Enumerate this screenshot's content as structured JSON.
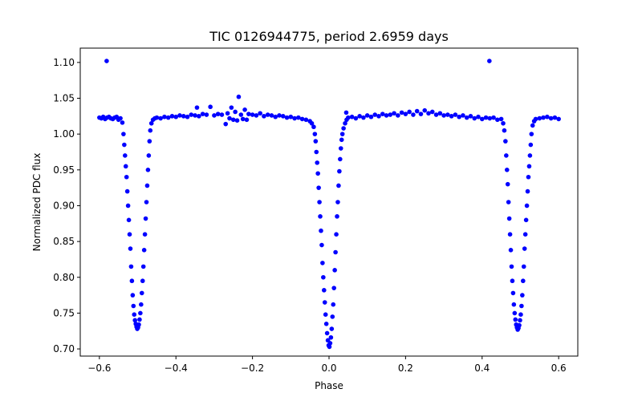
{
  "chart_data": {
    "type": "scatter",
    "title": "TIC 0126944775, period 2.6959 days",
    "xlabel": "Phase",
    "ylabel": "Normalized PDC flux",
    "xlim": [
      -0.65,
      0.65
    ],
    "ylim": [
      0.69,
      1.12
    ],
    "xticks": [
      -0.6,
      -0.4,
      -0.2,
      0.0,
      0.2,
      0.4,
      0.6
    ],
    "xtick_labels": [
      "−0.6",
      "−0.4",
      "−0.2",
      "0.0",
      "0.2",
      "0.4",
      "0.6"
    ],
    "yticks": [
      0.7,
      0.75,
      0.8,
      0.85,
      0.9,
      0.95,
      1.0,
      1.05,
      1.1
    ],
    "ytick_labels": [
      "0.70",
      "0.75",
      "0.80",
      "0.85",
      "0.90",
      "0.95",
      "1.00",
      "1.05",
      "1.10"
    ],
    "grid": false,
    "legend": "none",
    "marker_color": "#0000ff",
    "series": [
      {
        "points": [
          [
            -0.6,
            1.023
          ],
          [
            -0.595,
            1.022
          ],
          [
            -0.59,
            1.024
          ],
          [
            -0.585,
            1.021
          ],
          [
            -0.58,
            1.023
          ],
          [
            -0.575,
            1.024
          ],
          [
            -0.57,
            1.022
          ],
          [
            -0.565,
            1.021
          ],
          [
            -0.56,
            1.023
          ],
          [
            -0.555,
            1.024
          ],
          [
            -0.55,
            1.02
          ],
          [
            -0.545,
            1.022
          ],
          [
            -0.54,
            1.016
          ],
          [
            -0.537,
            1.0
          ],
          [
            -0.535,
            0.985
          ],
          [
            -0.533,
            0.97
          ],
          [
            -0.531,
            0.955
          ],
          [
            -0.529,
            0.94
          ],
          [
            -0.527,
            0.92
          ],
          [
            -0.525,
            0.9
          ],
          [
            -0.523,
            0.88
          ],
          [
            -0.521,
            0.86
          ],
          [
            -0.519,
            0.84
          ],
          [
            -0.517,
            0.815
          ],
          [
            -0.515,
            0.795
          ],
          [
            -0.513,
            0.775
          ],
          [
            -0.511,
            0.76
          ],
          [
            -0.509,
            0.748
          ],
          [
            -0.507,
            0.74
          ],
          [
            -0.505,
            0.735
          ],
          [
            -0.503,
            0.731
          ],
          [
            -0.501,
            0.728
          ],
          [
            -0.499,
            0.73
          ],
          [
            -0.497,
            0.734
          ],
          [
            -0.495,
            0.741
          ],
          [
            -0.493,
            0.75
          ],
          [
            -0.491,
            0.762
          ],
          [
            -0.489,
            0.778
          ],
          [
            -0.487,
            0.795
          ],
          [
            -0.485,
            0.815
          ],
          [
            -0.483,
            0.838
          ],
          [
            -0.481,
            0.86
          ],
          [
            -0.479,
            0.882
          ],
          [
            -0.477,
            0.905
          ],
          [
            -0.475,
            0.928
          ],
          [
            -0.473,
            0.95
          ],
          [
            -0.471,
            0.97
          ],
          [
            -0.469,
            0.99
          ],
          [
            -0.467,
            1.005
          ],
          [
            -0.464,
            1.015
          ],
          [
            -0.46,
            1.02
          ],
          [
            -0.455,
            1.022
          ],
          [
            -0.45,
            1.023
          ],
          [
            -0.44,
            1.022
          ],
          [
            -0.43,
            1.024
          ],
          [
            -0.42,
            1.023
          ],
          [
            -0.41,
            1.025
          ],
          [
            -0.4,
            1.024
          ],
          [
            -0.39,
            1.026
          ],
          [
            -0.38,
            1.025
          ],
          [
            -0.37,
            1.024
          ],
          [
            -0.36,
            1.027
          ],
          [
            -0.35,
            1.026
          ],
          [
            -0.345,
            1.037
          ],
          [
            -0.34,
            1.025
          ],
          [
            -0.33,
            1.028
          ],
          [
            -0.32,
            1.027
          ],
          [
            -0.31,
            1.038
          ],
          [
            -0.3,
            1.026
          ],
          [
            -0.29,
            1.028
          ],
          [
            -0.28,
            1.027
          ],
          [
            -0.27,
            1.014
          ],
          [
            -0.265,
            1.029
          ],
          [
            -0.26,
            1.022
          ],
          [
            -0.255,
            1.037
          ],
          [
            -0.25,
            1.02
          ],
          [
            -0.245,
            1.031
          ],
          [
            -0.24,
            1.019
          ],
          [
            -0.236,
            1.052
          ],
          [
            -0.23,
            1.027
          ],
          [
            -0.225,
            1.021
          ],
          [
            -0.22,
            1.034
          ],
          [
            -0.215,
            1.02
          ],
          [
            -0.21,
            1.028
          ],
          [
            -0.2,
            1.027
          ],
          [
            -0.19,
            1.026
          ],
          [
            -0.18,
            1.029
          ],
          [
            -0.17,
            1.025
          ],
          [
            -0.16,
            1.027
          ],
          [
            -0.15,
            1.026
          ],
          [
            -0.14,
            1.024
          ],
          [
            -0.13,
            1.026
          ],
          [
            -0.12,
            1.025
          ],
          [
            -0.11,
            1.023
          ],
          [
            -0.1,
            1.024
          ],
          [
            -0.09,
            1.022
          ],
          [
            -0.08,
            1.023
          ],
          [
            -0.07,
            1.021
          ],
          [
            -0.06,
            1.02
          ],
          [
            -0.05,
            1.018
          ],
          [
            -0.045,
            1.015
          ],
          [
            -0.04,
            1.01
          ],
          [
            -0.037,
            1.0
          ],
          [
            -0.035,
            0.99
          ],
          [
            -0.033,
            0.975
          ],
          [
            -0.031,
            0.96
          ],
          [
            -0.029,
            0.945
          ],
          [
            -0.027,
            0.925
          ],
          [
            -0.025,
            0.905
          ],
          [
            -0.023,
            0.885
          ],
          [
            -0.021,
            0.865
          ],
          [
            -0.019,
            0.845
          ],
          [
            -0.017,
            0.82
          ],
          [
            -0.015,
            0.8
          ],
          [
            -0.013,
            0.782
          ],
          [
            -0.011,
            0.765
          ],
          [
            -0.009,
            0.748
          ],
          [
            -0.007,
            0.735
          ],
          [
            -0.005,
            0.722
          ],
          [
            -0.003,
            0.712
          ],
          [
            -0.001,
            0.705
          ],
          [
            0.001,
            0.703
          ],
          [
            0.003,
            0.708
          ],
          [
            0.005,
            0.716
          ],
          [
            0.007,
            0.728
          ],
          [
            0.009,
            0.745
          ],
          [
            0.011,
            0.762
          ],
          [
            0.013,
            0.785
          ],
          [
            0.015,
            0.81
          ],
          [
            0.017,
            0.835
          ],
          [
            0.019,
            0.86
          ],
          [
            0.021,
            0.885
          ],
          [
            0.023,
            0.905
          ],
          [
            0.025,
            0.928
          ],
          [
            0.027,
            0.948
          ],
          [
            0.029,
            0.965
          ],
          [
            0.031,
            0.98
          ],
          [
            0.033,
            0.992
          ],
          [
            0.035,
            1.0
          ],
          [
            0.038,
            1.008
          ],
          [
            0.042,
            1.015
          ],
          [
            0.046,
            1.02
          ],
          [
            0.05,
            1.023
          ],
          [
            0.045,
            1.03
          ],
          [
            0.06,
            1.024
          ],
          [
            0.07,
            1.022
          ],
          [
            0.08,
            1.025
          ],
          [
            0.09,
            1.023
          ],
          [
            0.1,
            1.026
          ],
          [
            0.11,
            1.024
          ],
          [
            0.12,
            1.027
          ],
          [
            0.13,
            1.025
          ],
          [
            0.14,
            1.028
          ],
          [
            0.15,
            1.026
          ],
          [
            0.16,
            1.027
          ],
          [
            0.17,
            1.029
          ],
          [
            0.18,
            1.026
          ],
          [
            0.19,
            1.03
          ],
          [
            0.2,
            1.028
          ],
          [
            0.21,
            1.031
          ],
          [
            0.22,
            1.027
          ],
          [
            0.23,
            1.032
          ],
          [
            0.24,
            1.028
          ],
          [
            0.25,
            1.033
          ],
          [
            0.26,
            1.029
          ],
          [
            0.27,
            1.031
          ],
          [
            0.28,
            1.027
          ],
          [
            0.29,
            1.029
          ],
          [
            0.3,
            1.026
          ],
          [
            0.31,
            1.027
          ],
          [
            0.32,
            1.025
          ],
          [
            0.33,
            1.027
          ],
          [
            0.34,
            1.024
          ],
          [
            0.35,
            1.026
          ],
          [
            0.36,
            1.023
          ],
          [
            0.37,
            1.025
          ],
          [
            0.38,
            1.022
          ],
          [
            0.39,
            1.024
          ],
          [
            0.4,
            1.021
          ],
          [
            0.41,
            1.023
          ],
          [
            0.419,
            1.102
          ],
          [
            0.42,
            1.022
          ],
          [
            0.43,
            1.023
          ],
          [
            0.44,
            1.02
          ],
          [
            0.45,
            1.021
          ],
          [
            0.455,
            1.015
          ],
          [
            0.458,
            1.005
          ],
          [
            0.461,
            0.99
          ],
          [
            0.463,
            0.97
          ],
          [
            0.465,
            0.95
          ],
          [
            0.467,
            0.93
          ],
          [
            0.469,
            0.905
          ],
          [
            0.471,
            0.882
          ],
          [
            0.473,
            0.86
          ],
          [
            0.475,
            0.838
          ],
          [
            0.477,
            0.815
          ],
          [
            0.479,
            0.795
          ],
          [
            0.481,
            0.778
          ],
          [
            0.483,
            0.762
          ],
          [
            0.485,
            0.75
          ],
          [
            0.487,
            0.741
          ],
          [
            0.489,
            0.734
          ],
          [
            0.491,
            0.73
          ],
          [
            0.493,
            0.727
          ],
          [
            0.495,
            0.729
          ],
          [
            0.497,
            0.733
          ],
          [
            0.499,
            0.74
          ],
          [
            0.501,
            0.748
          ],
          [
            0.503,
            0.76
          ],
          [
            0.505,
            0.775
          ],
          [
            0.507,
            0.795
          ],
          [
            0.509,
            0.815
          ],
          [
            0.511,
            0.84
          ],
          [
            0.513,
            0.86
          ],
          [
            0.515,
            0.88
          ],
          [
            0.517,
            0.9
          ],
          [
            0.519,
            0.92
          ],
          [
            0.521,
            0.94
          ],
          [
            0.523,
            0.955
          ],
          [
            0.525,
            0.97
          ],
          [
            0.527,
            0.985
          ],
          [
            0.529,
            1.0
          ],
          [
            0.532,
            1.012
          ],
          [
            0.536,
            1.018
          ],
          [
            0.54,
            1.021
          ],
          [
            0.55,
            1.022
          ],
          [
            0.56,
            1.023
          ],
          [
            0.57,
            1.024
          ],
          [
            0.58,
            1.022
          ],
          [
            0.59,
            1.023
          ],
          [
            0.6,
            1.021
          ],
          [
            -0.581,
            1.102
          ]
        ]
      }
    ]
  }
}
